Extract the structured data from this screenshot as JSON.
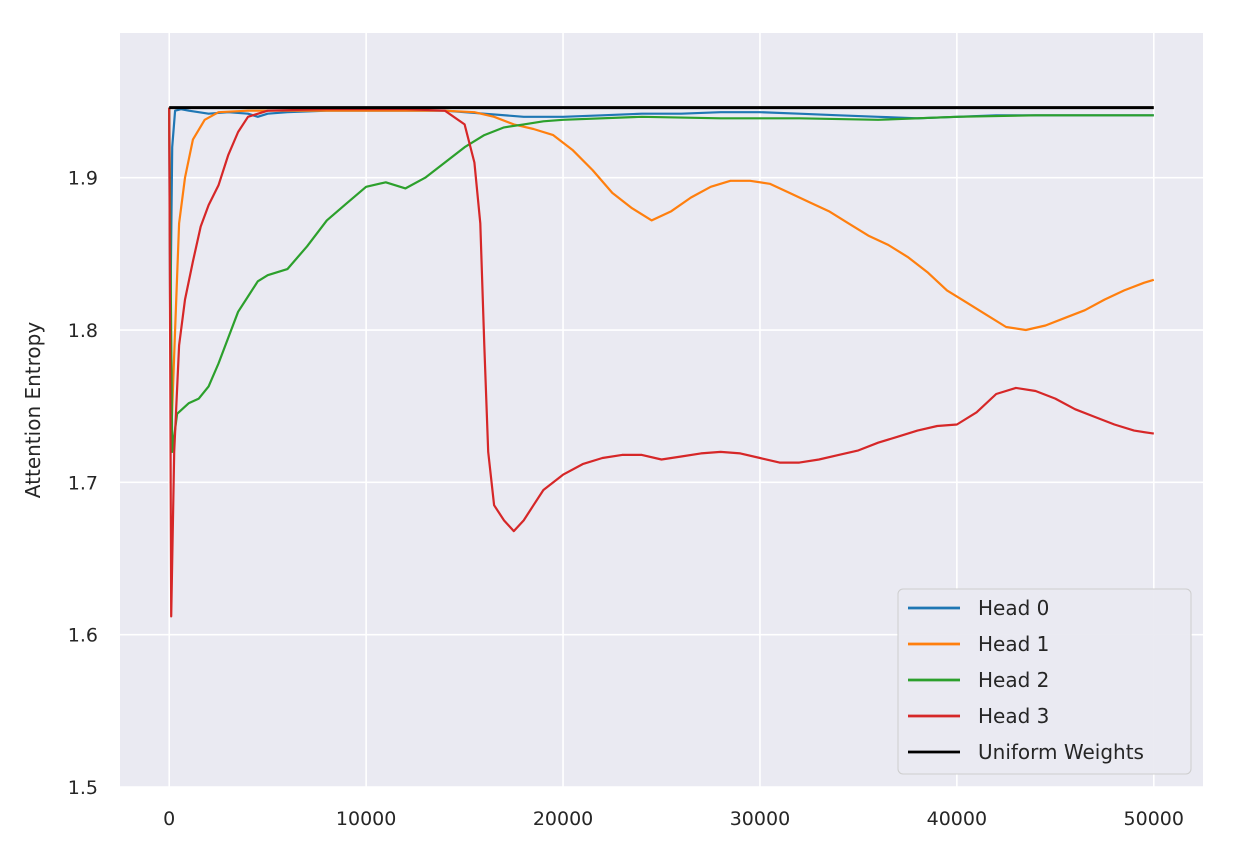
{
  "chart_data": {
    "type": "line",
    "title": "",
    "xlabel": "",
    "ylabel": "Attention Entropy",
    "xlim": [
      -2500,
      52500
    ],
    "ylim": [
      1.5,
      1.995
    ],
    "xticks": [
      0,
      10000,
      20000,
      30000,
      40000,
      50000
    ],
    "xtick_labels": [
      "0",
      "10000",
      "20000",
      "30000",
      "40000",
      "50000"
    ],
    "yticks": [
      1.5,
      1.6,
      1.7,
      1.8,
      1.9
    ],
    "ytick_labels": [
      "1.5",
      "1.6",
      "1.7",
      "1.8",
      "1.9"
    ],
    "grid": true,
    "legend_position": "lower-right",
    "series": [
      {
        "name": "Head 0",
        "color": "#1f77b4",
        "points": [
          [
            0,
            1.946
          ],
          [
            50,
            1.8
          ],
          [
            150,
            1.92
          ],
          [
            300,
            1.944
          ],
          [
            600,
            1.945
          ],
          [
            1000,
            1.944
          ],
          [
            2000,
            1.942
          ],
          [
            3000,
            1.943
          ],
          [
            4000,
            1.942
          ],
          [
            4500,
            1.94
          ],
          [
            5000,
            1.942
          ],
          [
            6000,
            1.943
          ],
          [
            8000,
            1.944
          ],
          [
            10000,
            1.944
          ],
          [
            12000,
            1.944
          ],
          [
            14000,
            1.944
          ],
          [
            16000,
            1.942
          ],
          [
            18000,
            1.94
          ],
          [
            20000,
            1.94
          ],
          [
            22000,
            1.941
          ],
          [
            24000,
            1.942
          ],
          [
            26000,
            1.942
          ],
          [
            28000,
            1.943
          ],
          [
            30000,
            1.943
          ],
          [
            32000,
            1.942
          ],
          [
            34000,
            1.941
          ],
          [
            36000,
            1.94
          ],
          [
            38000,
            1.939
          ],
          [
            40000,
            1.94
          ],
          [
            42000,
            1.941
          ],
          [
            44000,
            1.941
          ],
          [
            46000,
            1.941
          ],
          [
            48000,
            1.941
          ],
          [
            50000,
            1.941
          ]
        ]
      },
      {
        "name": "Head 1",
        "color": "#ff7f0e",
        "points": [
          [
            0,
            1.946
          ],
          [
            100,
            1.73
          ],
          [
            300,
            1.8
          ],
          [
            500,
            1.87
          ],
          [
            800,
            1.9
          ],
          [
            1200,
            1.925
          ],
          [
            1800,
            1.938
          ],
          [
            2500,
            1.943
          ],
          [
            4000,
            1.944
          ],
          [
            8000,
            1.944
          ],
          [
            12000,
            1.944
          ],
          [
            14000,
            1.944
          ],
          [
            15500,
            1.943
          ],
          [
            16500,
            1.94
          ],
          [
            17500,
            1.935
          ],
          [
            18500,
            1.932
          ],
          [
            19500,
            1.928
          ],
          [
            20500,
            1.918
          ],
          [
            21500,
            1.905
          ],
          [
            22500,
            1.89
          ],
          [
            23500,
            1.88
          ],
          [
            24500,
            1.872
          ],
          [
            25500,
            1.878
          ],
          [
            26500,
            1.887
          ],
          [
            27500,
            1.894
          ],
          [
            28500,
            1.898
          ],
          [
            29500,
            1.898
          ],
          [
            30500,
            1.896
          ],
          [
            31500,
            1.89
          ],
          [
            32500,
            1.884
          ],
          [
            33500,
            1.878
          ],
          [
            34500,
            1.87
          ],
          [
            35500,
            1.862
          ],
          [
            36500,
            1.856
          ],
          [
            37500,
            1.848
          ],
          [
            38500,
            1.838
          ],
          [
            39500,
            1.826
          ],
          [
            40500,
            1.818
          ],
          [
            41500,
            1.81
          ],
          [
            42500,
            1.802
          ],
          [
            43500,
            1.8
          ],
          [
            44500,
            1.803
          ],
          [
            45500,
            1.808
          ],
          [
            46500,
            1.813
          ],
          [
            47500,
            1.82
          ],
          [
            48500,
            1.826
          ],
          [
            49500,
            1.831
          ],
          [
            50000,
            1.833
          ]
        ]
      },
      {
        "name": "Head 2",
        "color": "#2ca02c",
        "points": [
          [
            0,
            1.946
          ],
          [
            150,
            1.72
          ],
          [
            400,
            1.745
          ],
          [
            1000,
            1.752
          ],
          [
            1500,
            1.755
          ],
          [
            2000,
            1.763
          ],
          [
            2500,
            1.778
          ],
          [
            3000,
            1.795
          ],
          [
            3500,
            1.812
          ],
          [
            4000,
            1.822
          ],
          [
            4500,
            1.832
          ],
          [
            5000,
            1.836
          ],
          [
            6000,
            1.84
          ],
          [
            7000,
            1.855
          ],
          [
            8000,
            1.872
          ],
          [
            9000,
            1.883
          ],
          [
            10000,
            1.894
          ],
          [
            11000,
            1.897
          ],
          [
            12000,
            1.893
          ],
          [
            13000,
            1.9
          ],
          [
            14000,
            1.91
          ],
          [
            15000,
            1.92
          ],
          [
            16000,
            1.928
          ],
          [
            17000,
            1.933
          ],
          [
            18000,
            1.935
          ],
          [
            19000,
            1.937
          ],
          [
            20000,
            1.938
          ],
          [
            24000,
            1.94
          ],
          [
            28000,
            1.939
          ],
          [
            32000,
            1.939
          ],
          [
            36000,
            1.938
          ],
          [
            40000,
            1.94
          ],
          [
            44000,
            1.941
          ],
          [
            48000,
            1.941
          ],
          [
            50000,
            1.941
          ]
        ]
      },
      {
        "name": "Head 3",
        "color": "#d62728",
        "points": [
          [
            0,
            1.946
          ],
          [
            100,
            1.612
          ],
          [
            250,
            1.72
          ],
          [
            500,
            1.79
          ],
          [
            800,
            1.82
          ],
          [
            1200,
            1.845
          ],
          [
            1600,
            1.868
          ],
          [
            2000,
            1.882
          ],
          [
            2500,
            1.895
          ],
          [
            3000,
            1.915
          ],
          [
            3500,
            1.93
          ],
          [
            4000,
            1.94
          ],
          [
            5000,
            1.944
          ],
          [
            8000,
            1.945
          ],
          [
            12000,
            1.945
          ],
          [
            14000,
            1.944
          ],
          [
            15000,
            1.935
          ],
          [
            15500,
            1.91
          ],
          [
            15800,
            1.87
          ],
          [
            16000,
            1.79
          ],
          [
            16200,
            1.72
          ],
          [
            16500,
            1.685
          ],
          [
            17000,
            1.675
          ],
          [
            17500,
            1.668
          ],
          [
            18000,
            1.675
          ],
          [
            18500,
            1.685
          ],
          [
            19000,
            1.695
          ],
          [
            19500,
            1.7
          ],
          [
            20000,
            1.705
          ],
          [
            21000,
            1.712
          ],
          [
            22000,
            1.716
          ],
          [
            23000,
            1.718
          ],
          [
            24000,
            1.718
          ],
          [
            25000,
            1.715
          ],
          [
            26000,
            1.717
          ],
          [
            27000,
            1.719
          ],
          [
            28000,
            1.72
          ],
          [
            29000,
            1.719
          ],
          [
            30000,
            1.716
          ],
          [
            31000,
            1.713
          ],
          [
            32000,
            1.713
          ],
          [
            33000,
            1.715
          ],
          [
            34000,
            1.718
          ],
          [
            35000,
            1.721
          ],
          [
            36000,
            1.726
          ],
          [
            37000,
            1.73
          ],
          [
            38000,
            1.734
          ],
          [
            39000,
            1.737
          ],
          [
            40000,
            1.738
          ],
          [
            41000,
            1.746
          ],
          [
            42000,
            1.758
          ],
          [
            43000,
            1.762
          ],
          [
            44000,
            1.76
          ],
          [
            45000,
            1.755
          ],
          [
            46000,
            1.748
          ],
          [
            47000,
            1.743
          ],
          [
            48000,
            1.738
          ],
          [
            49000,
            1.734
          ],
          [
            50000,
            1.732
          ]
        ]
      },
      {
        "name": "Uniform Weights",
        "color": "#000000",
        "points": [
          [
            0,
            1.946
          ],
          [
            50000,
            1.946
          ]
        ]
      }
    ]
  }
}
